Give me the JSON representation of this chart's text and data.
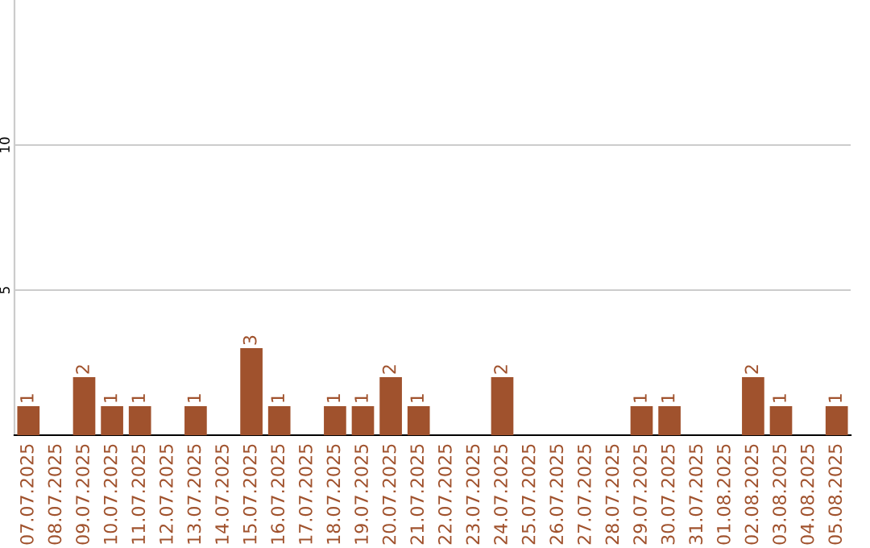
{
  "chart_data": {
    "type": "bar",
    "categories": [
      "07.07.2025",
      "08.07.2025",
      "09.07.2025",
      "10.07.2025",
      "11.07.2025",
      "12.07.2025",
      "13.07.2025",
      "14.07.2025",
      "15.07.2025",
      "16.07.2025",
      "17.07.2025",
      "18.07.2025",
      "19.07.2025",
      "20.07.2025",
      "21.07.2025",
      "22.07.2025",
      "23.07.2025",
      "24.07.2025",
      "25.07.2025",
      "26.07.2025",
      "27.07.2025",
      "28.07.2025",
      "29.07.2025",
      "30.07.2025",
      "31.07.2025",
      "01.08.2025",
      "02.08.2025",
      "03.08.2025",
      "04.08.2025",
      "05.08.2025"
    ],
    "values": [
      1,
      0,
      2,
      1,
      1,
      0,
      1,
      0,
      3,
      1,
      0,
      1,
      1,
      2,
      1,
      0,
      0,
      2,
      0,
      0,
      0,
      0,
      1,
      1,
      0,
      0,
      2,
      1,
      0,
      1
    ],
    "value_labels": [
      "1",
      null,
      "2",
      "1",
      "1",
      null,
      "1",
      null,
      "3",
      "1",
      null,
      "1",
      "1",
      "2",
      "1",
      null,
      null,
      "2",
      null,
      null,
      null,
      null,
      "1",
      "1",
      null,
      null,
      "2",
      "1",
      null,
      "1"
    ],
    "color": "#a0522d",
    "ylim": [
      0,
      15
    ],
    "yticks": [
      5,
      10
    ],
    "grid": "y"
  }
}
